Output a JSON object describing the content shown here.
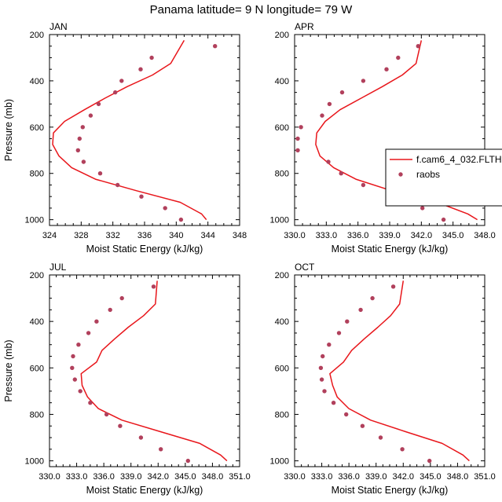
{
  "figure_title": "Panama  latitude= 9 N longitude= 79 W",
  "legend": {
    "line_label": "f.cam6_4_032.FLTH",
    "dot_label": "raobs"
  },
  "colors": {
    "model_line": "#e8161b",
    "obs_dots": "#b1405c"
  },
  "chart_data": [
    {
      "type": "line",
      "title": "JAN",
      "xlabel": "Moist Static Energy (kJ/kg)",
      "ylabel": "Pressure (mb)",
      "xlim": [
        324,
        348
      ],
      "ylim": [
        1025,
        200
      ],
      "xticks": [
        "324",
        "328",
        "332",
        "336",
        "340",
        "344",
        "348"
      ],
      "yticks": [
        "200",
        "400",
        "600",
        "800",
        "1000"
      ],
      "series": [
        {
          "name": "f.cam6_4_032.FLTH",
          "x": [
            343.8,
            343.2,
            340.5,
            335.0,
            329.8,
            326.8,
            325.2,
            324.4,
            324.5,
            325.9,
            328.4,
            331.0,
            333.8,
            337.0,
            339.3,
            341.0
          ],
          "y": [
            1000,
            975,
            925,
            875,
            825,
            775,
            725,
            675,
            625,
            575,
            525,
            475,
            425,
            375,
            325,
            225
          ]
        },
        {
          "name": "raobs",
          "x": [
            340.6,
            338.6,
            335.6,
            332.6,
            330.4,
            328.3,
            327.6,
            327.8,
            328.2,
            329.2,
            330.2,
            332.3,
            333.1,
            335.5,
            336.9,
            344.9
          ],
          "y": [
            1000,
            950,
            900,
            850,
            800,
            750,
            700,
            650,
            600,
            550,
            500,
            450,
            400,
            350,
            300,
            250
          ]
        }
      ]
    },
    {
      "type": "line",
      "title": "APR",
      "xlabel": "Moist Static Energy (kJ/kg)",
      "ylabel": "",
      "xlim": [
        330,
        348
      ],
      "ylim": [
        1025,
        200
      ],
      "xticks": [
        "330.0",
        "333.0",
        "336.0",
        "339.0",
        "342.0",
        "345.0",
        "348.0"
      ],
      "yticks": [
        "200",
        "400",
        "600",
        "800",
        "1000"
      ],
      "series": [
        {
          "name": "f.cam6_4_032.FLTH",
          "x": [
            347.3,
            346.4,
            343.5,
            339.2,
            335.8,
            333.7,
            332.4,
            332.0,
            332.1,
            332.9,
            334.3,
            336.3,
            338.3,
            340.2,
            341.5,
            342.0
          ],
          "y": [
            1000,
            975,
            925,
            875,
            825,
            775,
            725,
            675,
            625,
            575,
            525,
            475,
            425,
            375,
            325,
            225
          ]
        },
        {
          "name": "raobs",
          "x": [
            344.1,
            342.1,
            339.6,
            336.5,
            334.4,
            333.2,
            330.3,
            330.3,
            330.6,
            332.6,
            333.3,
            334.5,
            336.5,
            338.7,
            339.8,
            341.7
          ],
          "y": [
            1000,
            950,
            900,
            850,
            800,
            750,
            700,
            650,
            600,
            550,
            500,
            450,
            400,
            350,
            300,
            250
          ]
        }
      ]
    },
    {
      "type": "line",
      "title": "JUL",
      "xlabel": "Moist Static Energy (kJ/kg)",
      "ylabel": "Pressure (mb)",
      "xlim": [
        330,
        351
      ],
      "ylim": [
        1025,
        200
      ],
      "xticks": [
        "330.0",
        "333.0",
        "336.0",
        "339.0",
        "342.0",
        "345.0",
        "348.0",
        "351.0"
      ],
      "yticks": [
        "200",
        "400",
        "600",
        "800",
        "1000"
      ],
      "series": [
        {
          "name": "f.cam6_4_032.FLTH",
          "x": [
            349.6,
            348.9,
            346.6,
            342.3,
            338.0,
            335.4,
            334.2,
            333.6,
            333.5,
            335.2,
            335.8,
            337.2,
            338.7,
            340.4,
            341.7,
            341.9
          ],
          "y": [
            1000,
            975,
            925,
            875,
            825,
            775,
            725,
            675,
            625,
            575,
            525,
            475,
            425,
            375,
            325,
            225
          ]
        },
        {
          "name": "raobs",
          "x": [
            345.3,
            342.3,
            340.1,
            337.8,
            336.3,
            334.5,
            333.4,
            332.8,
            332.5,
            332.6,
            333.2,
            334.3,
            335.2,
            336.7,
            338.0,
            341.5
          ],
          "y": [
            1000,
            950,
            900,
            850,
            800,
            750,
            700,
            650,
            600,
            550,
            500,
            450,
            400,
            350,
            300,
            250
          ]
        }
      ]
    },
    {
      "type": "line",
      "title": "OCT",
      "xlabel": "Moist Static Energy (kJ/kg)",
      "ylabel": "",
      "xlim": [
        330,
        351
      ],
      "ylim": [
        1025,
        200
      ],
      "xticks": [
        "330.0",
        "333.0",
        "336.0",
        "339.0",
        "342.0",
        "345.0",
        "348.0",
        "351.0"
      ],
      "yticks": [
        "200",
        "400",
        "600",
        "800",
        "1000"
      ],
      "series": [
        {
          "name": "f.cam6_4_032.FLTH",
          "x": [
            349.3,
            348.6,
            346.3,
            342.3,
            338.4,
            336.0,
            334.7,
            334.2,
            333.9,
            335.4,
            336.3,
            337.7,
            339.2,
            340.6,
            341.6,
            342.0
          ],
          "y": [
            1000,
            975,
            925,
            875,
            825,
            775,
            725,
            675,
            625,
            575,
            525,
            475,
            425,
            375,
            325,
            225
          ]
        },
        {
          "name": "raobs",
          "x": [
            344.9,
            341.9,
            339.5,
            337.5,
            335.7,
            334.3,
            333.3,
            333.0,
            332.9,
            333.1,
            333.8,
            334.9,
            335.8,
            337.3,
            338.6,
            340.9
          ],
          "y": [
            1000,
            950,
            900,
            850,
            800,
            750,
            700,
            650,
            600,
            550,
            500,
            450,
            400,
            350,
            300,
            250
          ]
        }
      ]
    }
  ]
}
